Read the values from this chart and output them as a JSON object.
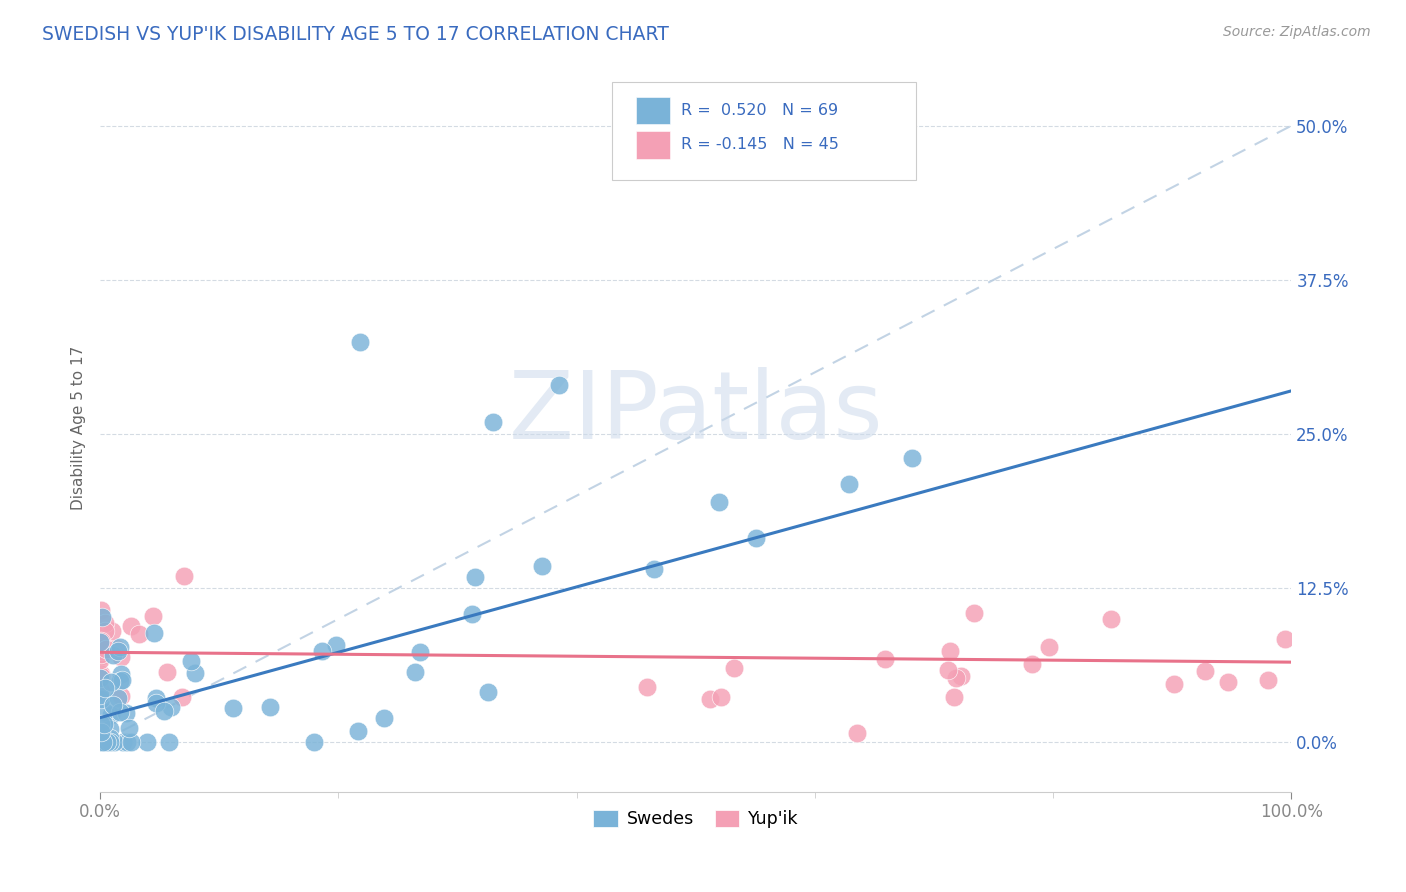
{
  "title": "SWEDISH VS YUP'IK DISABILITY AGE 5 TO 17 CORRELATION CHART",
  "source": "Source: ZipAtlas.com",
  "ylabel": "Disability Age 5 to 17",
  "yticks_labels": [
    "0.0%",
    "12.5%",
    "25.0%",
    "37.5%",
    "50.0%"
  ],
  "ytick_vals": [
    0.0,
    0.125,
    0.25,
    0.375,
    0.5
  ],
  "legend_swedes": "Swedes",
  "legend_yupik": "Yup'ik",
  "r_swedes": 0.52,
  "n_swedes": 69,
  "r_yupik": -0.145,
  "n_yupik": 45,
  "swedes_color": "#7ab3d8",
  "yupik_color": "#f4a0b5",
  "swedes_line_color": "#3a7abf",
  "yupik_line_color": "#e8728a",
  "diag_line_color": "#b8cce0",
  "grid_line_color": "#d0d8e0",
  "background_color": "#ffffff",
  "title_color": "#3a6bbf",
  "axis_label_color": "#3a6bbf",
  "ylabel_color": "#666666",
  "source_color": "#999999",
  "watermark_color": "#ccdaeb",
  "xmin": 0.0,
  "xmax": 1.0,
  "ymin": -0.04,
  "ymax": 0.55,
  "sw_intercept": 0.02,
  "sw_slope": 0.265,
  "yp_intercept": 0.073,
  "yp_slope": -0.008
}
